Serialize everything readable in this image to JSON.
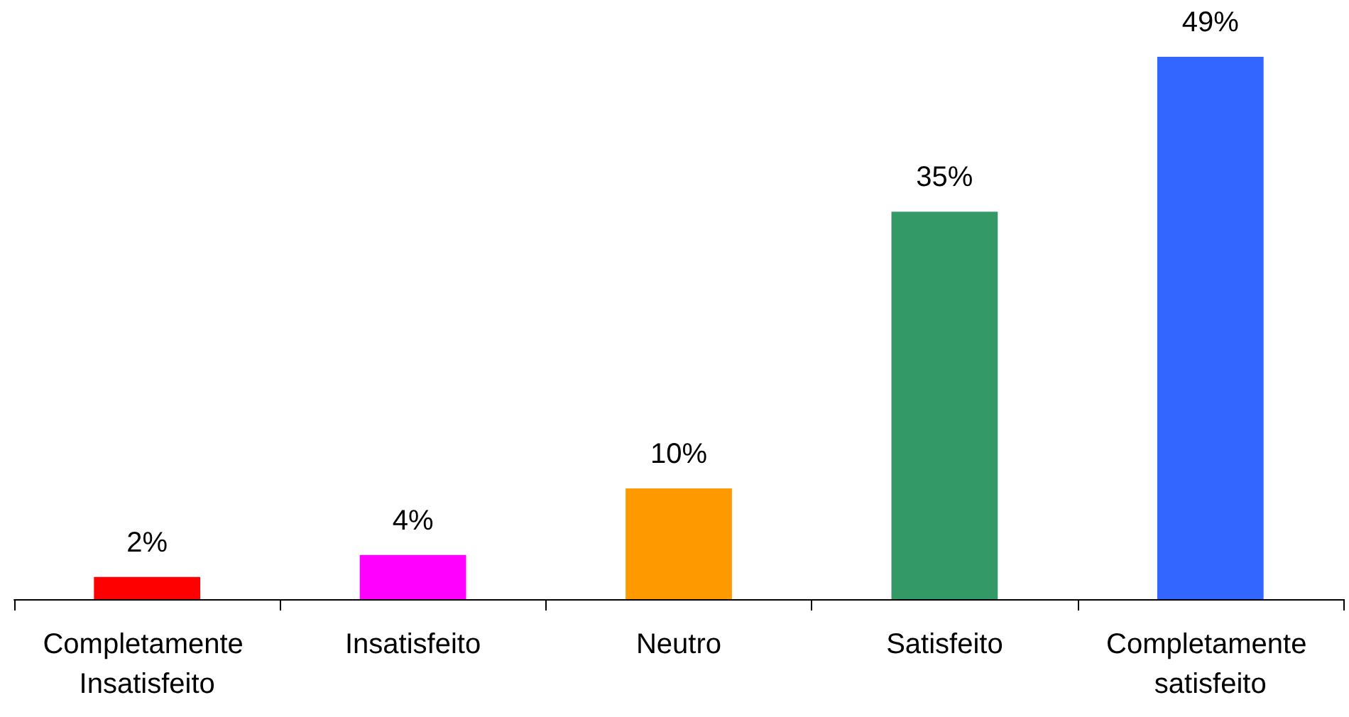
{
  "chart_data": {
    "type": "bar",
    "categories": [
      "Completamente Insatisfeito",
      "Insatisfeito",
      "Neutro",
      "Satisfeito",
      "Completamente satisfeito"
    ],
    "values": [
      2,
      4,
      10,
      35,
      49
    ],
    "colors": [
      "#ff0000",
      "#ff00ff",
      "#ff9900",
      "#339966",
      "#3366ff"
    ],
    "value_labels": [
      "2%",
      "4%",
      "10%",
      "35%",
      "49%"
    ]
  }
}
